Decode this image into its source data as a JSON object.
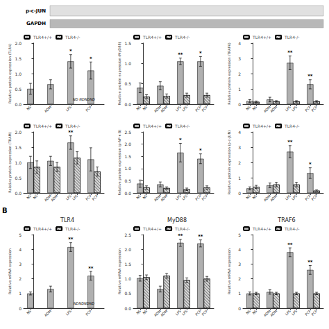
{
  "annotations": [
    "p-c-JUN",
    "GAPDH",
    "B"
  ],
  "chart_data": [
    {
      "type": "bar",
      "ylabel": "Relative protein expression (TLR4)",
      "categories": [
        "NS",
        "ADM",
        "LPS",
        "PCP"
      ],
      "ylim": [
        0,
        2.0
      ],
      "yticks": [
        {
          "value": 0,
          "label": "0.0"
        },
        0.5,
        {
          "value": 1,
          "label": "1.0"
        },
        1.5,
        {
          "value": 2,
          "label": "2.0"
        }
      ],
      "grid": false,
      "legend": "upper left",
      "annotations": [
        "ND NDNDND"
      ],
      "series": [
        {
          "name": "TLR4+/+",
          "color": "#b0b0b0",
          "values": [
            0.5,
            0.65,
            1.4,
            1.1
          ],
          "errors": [
            0.18,
            0.15,
            0.22,
            0.28
          ],
          "annotations": [
            null,
            null,
            "*",
            "*"
          ]
        },
        {
          "name": "TLR4-/-",
          "color": "#d8d8d8",
          "values": [
            null,
            null,
            null,
            null
          ],
          "errors": [
            null,
            null,
            null,
            null
          ]
        }
      ]
    },
    {
      "type": "bar",
      "ylabel": "Relative protein expression (MyD88)",
      "categories": [
        "NS",
        "ADM",
        "LPS",
        "PCP"
      ],
      "ylim": [
        0,
        1.5
      ],
      "yticks": [
        {
          "value": 0,
          "label": "0.0"
        },
        0.5,
        {
          "value": 1,
          "label": "1.0"
        },
        1.5
      ],
      "grid": false,
      "legend": "upper left",
      "series": [
        {
          "name": "TLR4+/+",
          "color": "#b0b0b0",
          "values": [
            0.4,
            0.45,
            1.05,
            1.05
          ],
          "errors": [
            0.12,
            0.1,
            0.08,
            0.12
          ],
          "annotations": [
            null,
            null,
            "**",
            "*"
          ]
        },
        {
          "name": "TLR4-/-",
          "color": "#d8d8d8",
          "values": [
            0.18,
            0.2,
            0.22,
            0.22
          ],
          "errors": [
            0.05,
            0.05,
            0.05,
            0.05
          ]
        }
      ]
    },
    {
      "type": "bar",
      "ylabel": "Relative protein expression (TRAF6)",
      "categories": [
        "NS",
        "ADM",
        "LPS",
        "PCP"
      ],
      "ylim": [
        0,
        4.0
      ],
      "yticks": [
        0,
        1,
        2,
        3,
        4
      ],
      "grid": false,
      "legend": "upper left",
      "series": [
        {
          "name": "TLR4+/+",
          "color": "#b0b0b0",
          "values": [
            0.2,
            0.3,
            2.7,
            1.3
          ],
          "errors": [
            0.1,
            0.15,
            0.45,
            0.3
          ],
          "annotations": [
            null,
            null,
            "**",
            "**"
          ]
        },
        {
          "name": "TLR4-/-",
          "color": "#d8d8d8",
          "values": [
            0.15,
            0.18,
            0.18,
            0.18
          ],
          "errors": [
            0.05,
            0.05,
            0.05,
            0.05
          ]
        }
      ]
    },
    {
      "type": "bar",
      "ylabel": "Relative protein expression (TRAM)",
      "categories": [
        "NS",
        "ADM",
        "LPS",
        "PCP"
      ],
      "ylim": [
        0,
        2.0
      ],
      "yticks": [
        {
          "value": 0,
          "label": "0.0"
        },
        0.5,
        {
          "value": 1,
          "label": "1.0"
        },
        1.5,
        {
          "value": 2,
          "label": "2.0"
        }
      ],
      "grid": false,
      "legend": "upper left",
      "series": [
        {
          "name": "TLR4+/+",
          "color": "#b0b0b0",
          "values": [
            1.0,
            1.05,
            1.65,
            1.1
          ],
          "errors": [
            0.2,
            0.15,
            0.22,
            0.38
          ],
          "annotations": [
            null,
            null,
            "**",
            null
          ]
        },
        {
          "name": "TLR4-/-",
          "color": "#d8d8d8",
          "values": [
            0.85,
            0.85,
            1.15,
            0.7
          ],
          "errors": [
            0.2,
            0.15,
            0.2,
            0.15
          ]
        }
      ]
    },
    {
      "type": "bar",
      "ylabel": "Relative protein expression (p-NF-κ B)",
      "categories": [
        "NS",
        "ADM",
        "LPS",
        "PCP"
      ],
      "ylim": [
        0,
        2.5
      ],
      "yticks": [
        {
          "value": 0,
          "label": "0.0"
        },
        0.5,
        {
          "value": 1,
          "label": "1.0"
        },
        1.5,
        {
          "value": 2,
          "label": "2.0"
        },
        2.5
      ],
      "grid": false,
      "legend": "upper left",
      "series": [
        {
          "name": "TLR4+/+",
          "color": "#b0b0b0",
          "values": [
            0.38,
            0.35,
            1.65,
            1.4
          ],
          "errors": [
            0.15,
            0.1,
            0.38,
            0.2
          ],
          "annotations": [
            null,
            null,
            "*",
            "*"
          ]
        },
        {
          "name": "TLR4-/-",
          "color": "#d8d8d8",
          "values": [
            0.22,
            0.2,
            0.15,
            0.22
          ],
          "errors": [
            0.07,
            0.05,
            0.05,
            0.07
          ]
        }
      ]
    },
    {
      "type": "bar",
      "ylabel": "Relative protein expression (p-c-JUN)",
      "categories": [
        "NS",
        "ADM",
        "LPS",
        "PCP"
      ],
      "ylim": [
        0,
        4.0
      ],
      "yticks": [
        0,
        1,
        2,
        3,
        4
      ],
      "grid": false,
      "legend": "upper left",
      "series": [
        {
          "name": "TLR4+/+",
          "color": "#b0b0b0",
          "values": [
            0.3,
            0.5,
            2.7,
            1.3
          ],
          "errors": [
            0.1,
            0.15,
            0.4,
            0.35
          ],
          "annotations": [
            null,
            null,
            "**",
            "*"
          ]
        },
        {
          "name": "TLR4-/-",
          "color": "#d8d8d8",
          "values": [
            0.4,
            0.55,
            0.55,
            0.15
          ],
          "errors": [
            0.1,
            0.15,
            0.15,
            0.05
          ]
        }
      ]
    },
    {
      "type": "bar",
      "title": "TLR4",
      "ylabel": "Relative mRNA expression",
      "categories": [
        "NS",
        "ADM",
        "LPS",
        "PCP"
      ],
      "ylim": [
        0,
        5
      ],
      "yticks": [
        0,
        1,
        2,
        3,
        4,
        5
      ],
      "grid": false,
      "legend": "upper left",
      "annotations": [
        "NDNDNDND"
      ],
      "series": [
        {
          "name": "TLR4+/+",
          "color": "#b0b0b0",
          "values": [
            1.0,
            1.3,
            4.15,
            2.2
          ],
          "errors": [
            0.1,
            0.2,
            0.3,
            0.3
          ],
          "annotations": [
            null,
            null,
            "**",
            "**"
          ]
        },
        {
          "name": "TLR4-/-",
          "color": "#d8d8d8",
          "values": [
            null,
            null,
            null,
            null
          ],
          "errors": [
            null,
            null,
            null,
            null
          ]
        }
      ]
    },
    {
      "type": "bar",
      "title": "MyD88",
      "ylabel": "Relative mRNA expression",
      "categories": [
        "NS",
        "ADM",
        "LPS",
        "PCP"
      ],
      "ylim": [
        0,
        2.5
      ],
      "yticks": [
        {
          "value": 0,
          "label": "0.0"
        },
        0.5,
        {
          "value": 1,
          "label": "1.0"
        },
        1.5,
        {
          "value": 2,
          "label": "2.0"
        },
        2.5
      ],
      "grid": false,
      "legend": "upper left",
      "series": [
        {
          "name": "TLR4+/+",
          "color": "#b0b0b0",
          "values": [
            1.02,
            0.65,
            2.22,
            2.2
          ],
          "errors": [
            0.1,
            0.1,
            0.12,
            0.12
          ],
          "annotations": [
            null,
            null,
            "**",
            "**"
          ]
        },
        {
          "name": "TLR4-/-",
          "color": "#d8d8d8",
          "values": [
            1.05,
            1.1,
            0.95,
            1.0
          ],
          "errors": [
            0.08,
            0.08,
            0.08,
            0.08
          ]
        }
      ]
    },
    {
      "type": "bar",
      "title": "TRAF6",
      "ylabel": "Relative mRNA expression",
      "categories": [
        "NS",
        "ADM",
        "LPS",
        "PCP"
      ],
      "ylim": [
        0,
        5
      ],
      "yticks": [
        0,
        1,
        2,
        3,
        4,
        5
      ],
      "grid": false,
      "legend": "upper left",
      "series": [
        {
          "name": "TLR4+/+",
          "color": "#b0b0b0",
          "values": [
            1.0,
            1.1,
            3.8,
            2.6
          ],
          "errors": [
            0.1,
            0.15,
            0.3,
            0.3
          ],
          "annotations": [
            null,
            null,
            "**",
            "**"
          ]
        },
        {
          "name": "TLR4-/-",
          "color": "#d8d8d8",
          "values": [
            1.0,
            1.0,
            1.0,
            1.0
          ],
          "errors": [
            0.08,
            0.08,
            0.08,
            0.08
          ]
        }
      ]
    }
  ]
}
